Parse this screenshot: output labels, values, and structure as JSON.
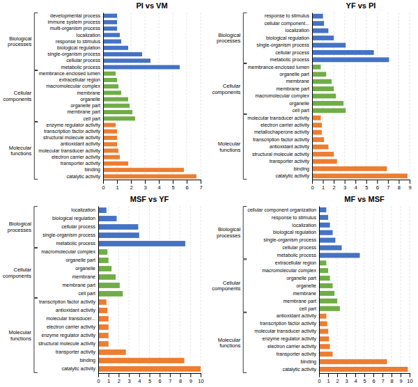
{
  "chart_data": [
    {
      "type": "bar",
      "orientation": "horizontal",
      "title": "PI vs VM",
      "categories": [
        "developmental process",
        "immune system process",
        "multi-organism process",
        "localization",
        "response to stimulus",
        "biological regulation",
        "single-organism process",
        "cellular process",
        "metabolic process",
        "membrance-enclosed lumen",
        "extracellular region",
        "macromolecular complex",
        "membrane",
        "organelle",
        "organelle part",
        "membrane part",
        "cell part",
        "enzyme regulator activity",
        "transcription factor activity",
        "structural molecule activity",
        "antioxidant activity",
        "molecular transducer activity",
        "electron carrier activity",
        "transporter activity",
        "binding",
        "catalytic activity"
      ],
      "values": [
        1.0,
        1.0,
        1.0,
        1.2,
        1.3,
        1.8,
        2.8,
        3.4,
        5.5,
        0.9,
        1.0,
        1.1,
        1.3,
        1.8,
        1.9,
        2.1,
        2.3,
        0.9,
        1.0,
        1.0,
        1.0,
        1.1,
        1.2,
        1.8,
        5.8,
        6.7
      ],
      "colors": [
        "#4472c4",
        "#4472c4",
        "#4472c4",
        "#4472c4",
        "#4472c4",
        "#4472c4",
        "#4472c4",
        "#4472c4",
        "#4472c4",
        "#70ad47",
        "#70ad47",
        "#70ad47",
        "#70ad47",
        "#70ad47",
        "#70ad47",
        "#70ad47",
        "#70ad47",
        "#ed7d31",
        "#ed7d31",
        "#ed7d31",
        "#ed7d31",
        "#ed7d31",
        "#ed7d31",
        "#ed7d31",
        "#ed7d31",
        "#ed7d31"
      ],
      "group_labels": [
        "Biological\nprocesses",
        "Cellular\ncomponents",
        "Molecular\nfunctions"
      ],
      "group_spans": [
        [
          0,
          8
        ],
        [
          9,
          16
        ],
        [
          17,
          25
        ]
      ],
      "xlim": [
        0,
        7
      ],
      "xticks": [
        0,
        1,
        2,
        3,
        4,
        5,
        6,
        7
      ],
      "grid": true
    },
    {
      "type": "bar",
      "orientation": "horizontal",
      "title": "YF vs PI",
      "categories": [
        "response to stimulus",
        "cellular component...",
        "localization",
        "biological regulation",
        "single-organism process",
        "cellular process",
        "metabolic process",
        "membrance-enclosed lumen",
        "organelle part",
        "membrane",
        "membrane part",
        "macromolecular complex",
        "organelle",
        "cell part",
        "molecular transducer activity",
        "electron carrier activity",
        "metallochaperone activity",
        "transcription factor activity",
        "antioxidant activity",
        "structural molecule activity",
        "transporter activity",
        "binding",
        "catalytic activity"
      ],
      "values": [
        1.0,
        1.1,
        1.5,
        2.0,
        3.1,
        5.7,
        7.1,
        0.8,
        1.3,
        1.8,
        2.0,
        2.2,
        2.9,
        3.1,
        0.8,
        0.9,
        0.9,
        1.1,
        1.5,
        2.0,
        2.3,
        6.9,
        8.8
      ],
      "colors": [
        "#4472c4",
        "#4472c4",
        "#4472c4",
        "#4472c4",
        "#4472c4",
        "#4472c4",
        "#4472c4",
        "#70ad47",
        "#70ad47",
        "#70ad47",
        "#70ad47",
        "#70ad47",
        "#70ad47",
        "#70ad47",
        "#ed7d31",
        "#ed7d31",
        "#ed7d31",
        "#ed7d31",
        "#ed7d31",
        "#ed7d31",
        "#ed7d31",
        "#ed7d31",
        "#ed7d31"
      ],
      "group_labels": [
        "Biological\nprocesses",
        "Cellular\ncomponents",
        "Molecular\nfunctions"
      ],
      "group_spans": [
        [
          0,
          6
        ],
        [
          7,
          13
        ],
        [
          14,
          22
        ]
      ],
      "xlim": [
        0,
        9
      ],
      "xticks": [
        0,
        1,
        2,
        3,
        4,
        5,
        6,
        7,
        8,
        9
      ],
      "grid": true
    },
    {
      "type": "bar",
      "orientation": "horizontal",
      "title": "MSF vs YF",
      "categories": [
        "localization",
        "biological regulation",
        "cellular process",
        "single-organism process",
        "metabolic process",
        "macromolecular complex",
        "organelle part",
        "organelle",
        "membrane",
        "membrane part",
        "cell part",
        "transcription factor activity",
        "antioxidant activity",
        "molecular transducer...",
        "electron carrier activity",
        "enzyme regulator activity",
        "structural molecule activity",
        "transporter activity",
        "binding",
        "catalytic activity"
      ],
      "values": [
        0.8,
        1.8,
        3.9,
        4.0,
        8.5,
        0.9,
        1.0,
        1.3,
        1.7,
        2.1,
        2.4,
        0.8,
        0.9,
        1.0,
        1.0,
        1.0,
        1.0,
        2.7,
        8.4,
        10.0
      ],
      "colors": [
        "#4472c4",
        "#4472c4",
        "#4472c4",
        "#4472c4",
        "#4472c4",
        "#70ad47",
        "#70ad47",
        "#70ad47",
        "#70ad47",
        "#70ad47",
        "#70ad47",
        "#ed7d31",
        "#ed7d31",
        "#ed7d31",
        "#ed7d31",
        "#ed7d31",
        "#ed7d31",
        "#ed7d31",
        "#ed7d31",
        "#ed7d31"
      ],
      "group_labels": [
        "Biological\nprocesses",
        "Cellular\ncomponents",
        "Molecular\nfunctions"
      ],
      "group_spans": [
        [
          0,
          4
        ],
        [
          5,
          10
        ],
        [
          11,
          19
        ]
      ],
      "xlim": [
        0,
        10
      ],
      "xticks": [
        0,
        1,
        2,
        3,
        4,
        5,
        6,
        7,
        8,
        9,
        10
      ],
      "grid": true
    },
    {
      "type": "bar",
      "orientation": "horizontal",
      "title": "MF vs MSF",
      "categories": [
        "cellular component organization",
        "response to stimulus",
        "localization",
        "biological regulation",
        "single-organism process",
        "cellular process",
        "metabolic process",
        "extracellular region",
        "macromolecular complex",
        "organelle part",
        "organelle",
        "membrane",
        "membrane part",
        "cell part",
        "antioxidant activity",
        "transcription factor activity",
        "molecular transducer activity",
        "enzyme regulator activity",
        "electron carrier activity",
        "transporter activity",
        "binding",
        "catalytic activity"
      ],
      "values": [
        0.8,
        1.0,
        1.2,
        1.5,
        1.8,
        2.5,
        4.5,
        0.8,
        1.0,
        1.2,
        1.5,
        1.7,
        2.0,
        2.3,
        0.8,
        0.9,
        1.0,
        1.1,
        1.2,
        1.5,
        7.5,
        9.8
      ],
      "colors": [
        "#4472c4",
        "#4472c4",
        "#4472c4",
        "#4472c4",
        "#4472c4",
        "#4472c4",
        "#4472c4",
        "#70ad47",
        "#70ad47",
        "#70ad47",
        "#70ad47",
        "#70ad47",
        "#70ad47",
        "#70ad47",
        "#ed7d31",
        "#ed7d31",
        "#ed7d31",
        "#ed7d31",
        "#ed7d31",
        "#ed7d31",
        "#ed7d31",
        "#ed7d31"
      ],
      "group_labels": [
        "Biological\nprocesses",
        "Cellular\ncomponents",
        "Molecular\nfunctions"
      ],
      "group_spans": [
        [
          0,
          6
        ],
        [
          7,
          13
        ],
        [
          14,
          21
        ]
      ],
      "xlim": [
        0,
        10
      ],
      "xticks": [
        0,
        1,
        2,
        3,
        4,
        5,
        6,
        7,
        8,
        9,
        10
      ],
      "grid": true
    }
  ]
}
